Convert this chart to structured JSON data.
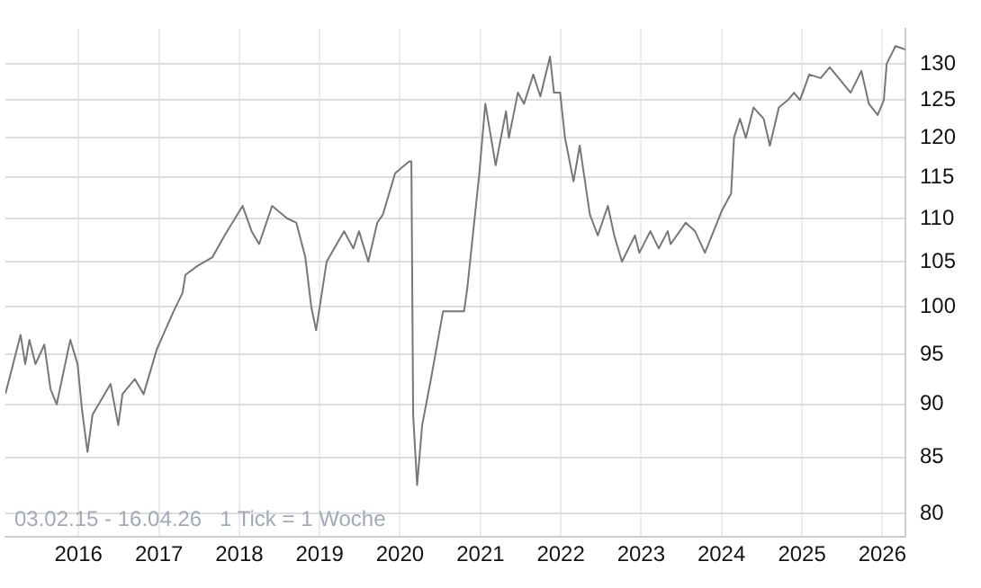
{
  "chart_data": {
    "type": "line",
    "log": true,
    "grid": true,
    "legend": false,
    "marker": "none",
    "line_style": "solid",
    "xlim": [
      "2015-02-03",
      "2026-04-16"
    ],
    "xticks": [
      "2016",
      "2017",
      "2018",
      "2019",
      "2020",
      "2021",
      "2022",
      "2023",
      "2024",
      "2025",
      "2026"
    ],
    "ylim": [
      78,
      135
    ],
    "yticks": [
      80,
      85,
      90,
      95,
      100,
      105,
      110,
      115,
      120,
      125,
      130
    ],
    "annotations": [
      "03.02.15 - 16.04.26   1 Tick = 1 Woche"
    ],
    "series": [
      {
        "color": "#777777",
        "x": [
          "2015-02-03",
          "2015-04-13",
          "2015-05-04",
          "2015-05-23",
          "2015-06-20",
          "2015-07-30",
          "2015-08-27",
          "2015-09-24",
          "2015-11-25",
          "2015-12-28",
          "2016-01-17",
          "2016-02-11",
          "2016-03-05",
          "2016-05-26",
          "2016-06-30",
          "2016-07-19",
          "2016-09-13",
          "2016-10-23",
          "2016-12-22",
          "2017-03-08",
          "2017-04-18",
          "2017-05-01",
          "2017-06-24",
          "2017-09-01",
          "2017-10-26",
          "2018-01-16",
          "2018-02-26",
          "2018-04-01",
          "2018-05-30",
          "2018-08-07",
          "2018-09-17",
          "2018-10-28",
          "2018-11-24",
          "2018-12-16",
          "2019-02-02",
          "2019-04-22",
          "2019-06-03",
          "2019-06-29",
          "2019-08-10",
          "2019-09-20",
          "2019-10-16",
          "2019-12-10",
          "2020-02-12",
          "2020-02-22",
          "2020-03-01",
          "2020-03-19",
          "2020-04-11",
          "2020-05-21",
          "2020-07-15",
          "2020-10-18",
          "2020-11-02",
          "2020-12-26",
          "2021-01-23",
          "2021-03-11",
          "2021-04-27",
          "2021-05-10",
          "2021-06-20",
          "2021-07-18",
          "2021-08-29",
          "2021-09-30",
          "2021-11-13",
          "2021-12-01",
          "2021-12-29",
          "2022-01-20",
          "2022-02-28",
          "2022-03-28",
          "2022-05-13",
          "2022-06-18",
          "2022-08-03",
          "2022-09-01",
          "2022-10-06",
          "2022-12-04",
          "2022-12-24",
          "2023-02-12",
          "2023-03-22",
          "2023-05-02",
          "2023-05-15",
          "2023-07-23",
          "2023-09-03",
          "2023-10-18",
          "2024-01-04",
          "2024-02-14",
          "2024-02-27",
          "2024-03-25",
          "2024-04-21",
          "2024-05-26",
          "2024-07-11",
          "2024-08-08",
          "2024-09-18",
          "2024-10-29",
          "2024-11-26",
          "2024-12-23",
          "2025-02-03",
          "2025-03-27",
          "2025-05-07",
          "2025-06-17",
          "2025-08-10",
          "2025-09-28",
          "2025-11-01",
          "2025-12-11",
          "2026-01-08",
          "2026-01-21",
          "2026-03-02",
          "2026-04-16"
        ],
        "values": [
          91,
          97,
          94,
          96.5,
          94,
          96,
          91.5,
          90,
          96.5,
          94,
          89.5,
          85.5,
          89,
          92,
          88,
          91,
          92.5,
          91,
          95.5,
          99.5,
          101.5,
          103.5,
          104.5,
          105.5,
          108,
          111.5,
          108.5,
          107,
          111.5,
          110,
          109.5,
          105.5,
          100,
          97.5,
          105,
          108.5,
          106.5,
          108.5,
          105,
          109.5,
          110.5,
          115.5,
          117,
          117,
          89,
          82.5,
          88,
          92.5,
          99.5,
          99.5,
          102,
          115.3,
          124.5,
          116.5,
          123.5,
          120,
          126,
          124.5,
          128.5,
          125.5,
          131,
          126,
          126,
          120,
          114.5,
          119,
          110.5,
          108,
          111.5,
          108,
          105,
          108,
          106,
          108.5,
          106.5,
          108.5,
          107,
          109.5,
          108.5,
          106,
          111,
          113,
          120,
          122.5,
          120,
          124,
          122.5,
          119,
          124,
          125,
          126,
          125,
          128.5,
          128,
          129.5,
          128,
          126,
          129,
          124.5,
          123,
          125,
          130,
          132.5,
          132
        ]
      }
    ]
  }
}
